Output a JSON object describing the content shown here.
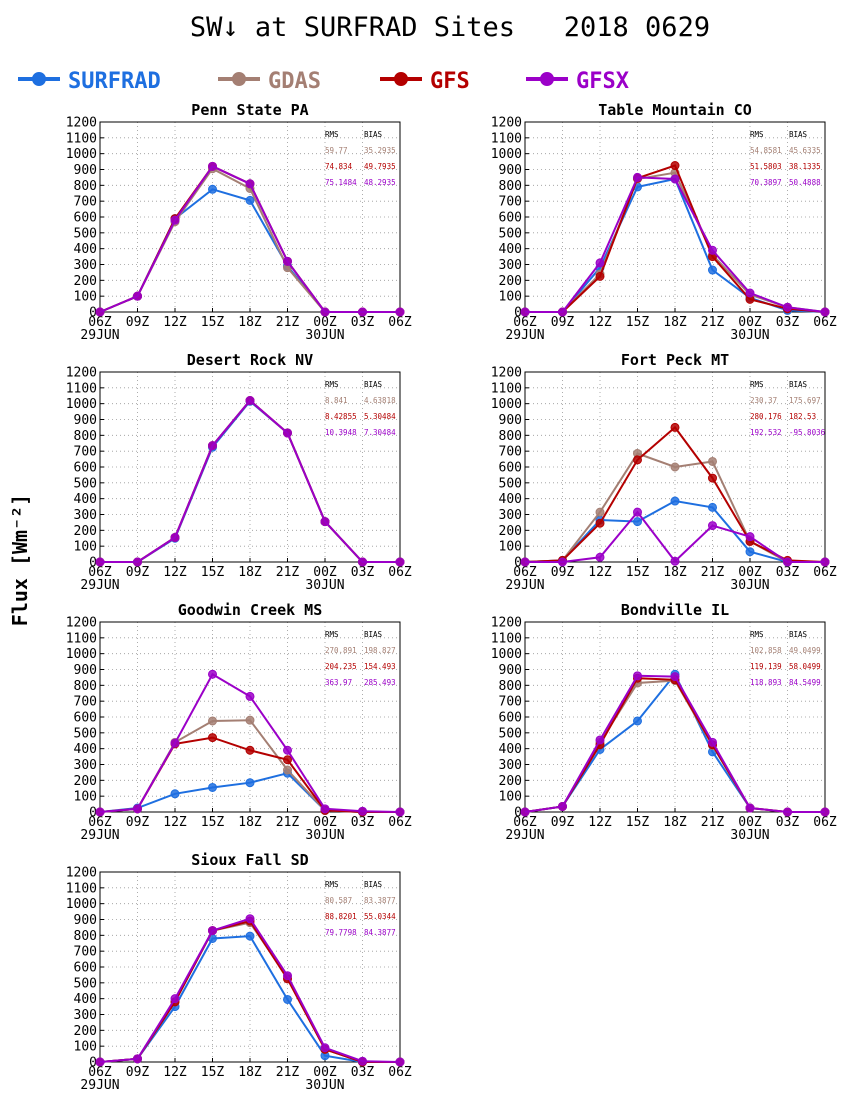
{
  "page": {
    "title": "SW↓ at SURFRAD Sites   2018 0629",
    "ylabel": "Flux [Wm⁻²]"
  },
  "legend": [
    {
      "name": "SURFRAD",
      "color": "#1e6fe0"
    },
    {
      "name": "GDAS",
      "color": "#a47f73"
    },
    {
      "name": "GFS",
      "color": "#b40000"
    },
    {
      "name": "GFSX",
      "color": "#9b00c8"
    }
  ],
  "stat_headers": {
    "rms": "RMS",
    "bias": "BIAS"
  },
  "chart_data": [
    {
      "type": "line",
      "title": "Penn State PA",
      "x": [
        "06Z",
        "09Z",
        "12Z",
        "15Z",
        "18Z",
        "21Z",
        "00Z",
        "03Z",
        "06Z"
      ],
      "date_labels": [
        "29JUN",
        "30JUN"
      ],
      "ylim": [
        0,
        1200
      ],
      "yticks": [
        0,
        100,
        200,
        300,
        400,
        500,
        600,
        700,
        800,
        900,
        1000,
        1100,
        1200
      ],
      "grid": true,
      "series": [
        {
          "name": "SURFRAD",
          "color": "#1e6fe0",
          "values": [
            0,
            100,
            590,
            775,
            705,
            290,
            0,
            null,
            null
          ]
        },
        {
          "name": "GDAS",
          "color": "#a47f73",
          "values": [
            0,
            100,
            570,
            905,
            780,
            280,
            0,
            0,
            0
          ]
        },
        {
          "name": "GFS",
          "color": "#b40000",
          "values": [
            0,
            100,
            590,
            920,
            810,
            320,
            0,
            0,
            0
          ]
        },
        {
          "name": "GFSX",
          "color": "#9b00c8",
          "values": [
            0,
            100,
            580,
            920,
            810,
            320,
            0,
            0,
            0
          ]
        }
      ],
      "stats": [
        {
          "rms": "59.77",
          "bias": "35.2935",
          "color": "#a47f73"
        },
        {
          "rms": "74.834",
          "bias": "49.7935",
          "color": "#b40000"
        },
        {
          "rms": "75.1484",
          "bias": "48.2935",
          "color": "#9b00c8"
        }
      ]
    },
    {
      "type": "line",
      "title": "Table Mountain CO",
      "x": [
        "06Z",
        "09Z",
        "12Z",
        "15Z",
        "18Z",
        "21Z",
        "00Z",
        "03Z",
        "06Z"
      ],
      "date_labels": [
        "29JUN",
        "30JUN"
      ],
      "ylim": [
        0,
        1200
      ],
      "yticks": [
        0,
        100,
        200,
        300,
        400,
        500,
        600,
        700,
        800,
        900,
        1000,
        1100,
        1200
      ],
      "grid": true,
      "series": [
        {
          "name": "SURFRAD",
          "color": "#1e6fe0",
          "values": [
            0,
            0,
            280,
            790,
            840,
            265,
            90,
            10,
            0
          ]
        },
        {
          "name": "GDAS",
          "color": "#a47f73",
          "values": [
            0,
            0,
            240,
            840,
            880,
            360,
            110,
            30,
            0
          ]
        },
        {
          "name": "GFS",
          "color": "#b40000",
          "values": [
            0,
            0,
            225,
            845,
            925,
            350,
            80,
            20,
            0
          ]
        },
        {
          "name": "GFSX",
          "color": "#9b00c8",
          "values": [
            0,
            0,
            310,
            850,
            840,
            390,
            120,
            30,
            0
          ]
        }
      ],
      "stats": [
        {
          "rms": "54.8581",
          "bias": "45.6335",
          "color": "#a47f73"
        },
        {
          "rms": "51.5803",
          "bias": "38.1335",
          "color": "#b40000"
        },
        {
          "rms": "70.3897",
          "bias": "50.4888",
          "color": "#9b00c8"
        }
      ]
    },
    {
      "type": "line",
      "title": "Desert Rock NV",
      "x": [
        "06Z",
        "09Z",
        "12Z",
        "15Z",
        "18Z",
        "21Z",
        "00Z",
        "03Z",
        "06Z"
      ],
      "date_labels": [
        "29JUN",
        "30JUN"
      ],
      "ylim": [
        0,
        1200
      ],
      "yticks": [
        0,
        100,
        200,
        300,
        400,
        500,
        600,
        700,
        800,
        900,
        1000,
        1100,
        1200
      ],
      "grid": true,
      "series": [
        {
          "name": "SURFRAD",
          "color": "#1e6fe0",
          "values": [
            0,
            0,
            150,
            725,
            1015,
            815,
            255,
            0,
            0
          ]
        },
        {
          "name": "GDAS",
          "color": "#a47f73",
          "values": [
            0,
            0,
            155,
            735,
            1020,
            815,
            255,
            0,
            0
          ]
        },
        {
          "name": "GFS",
          "color": "#b40000",
          "values": [
            0,
            0,
            155,
            735,
            1020,
            815,
            255,
            0,
            0
          ]
        },
        {
          "name": "GFSX",
          "color": "#9b00c8",
          "values": [
            0,
            0,
            155,
            735,
            1020,
            815,
            255,
            0,
            0
          ]
        }
      ],
      "stats": [
        {
          "rms": "8.841",
          "bias": "4.63818",
          "color": "#a47f73"
        },
        {
          "rms": "8.42855",
          "bias": "5.30484",
          "color": "#b40000"
        },
        {
          "rms": "10.3948",
          "bias": "7.30484",
          "color": "#9b00c8"
        }
      ]
    },
    {
      "type": "line",
      "title": "Fort Peck MT",
      "x": [
        "06Z",
        "09Z",
        "12Z",
        "15Z",
        "18Z",
        "21Z",
        "00Z",
        "03Z",
        "06Z"
      ],
      "date_labels": [
        "29JUN",
        "30JUN"
      ],
      "ylim": [
        0,
        1200
      ],
      "yticks": [
        0,
        100,
        200,
        300,
        400,
        500,
        600,
        700,
        800,
        900,
        1000,
        1100,
        1200
      ],
      "grid": true,
      "series": [
        {
          "name": "SURFRAD",
          "color": "#1e6fe0",
          "values": [
            0,
            10,
            265,
            255,
            385,
            345,
            65,
            0,
            0
          ]
        },
        {
          "name": "GDAS",
          "color": "#a47f73",
          "values": [
            0,
            10,
            315,
            685,
            600,
            635,
            130,
            0,
            0
          ]
        },
        {
          "name": "GFS",
          "color": "#b40000",
          "values": [
            0,
            10,
            245,
            645,
            850,
            530,
            130,
            10,
            0
          ]
        },
        {
          "name": "GFSX",
          "color": "#9b00c8",
          "values": [
            0,
            0,
            30,
            315,
            5,
            230,
            160,
            0,
            0
          ]
        }
      ],
      "stats": [
        {
          "rms": "230.37",
          "bias": "175.697",
          "color": "#a47f73"
        },
        {
          "rms": "280.176",
          "bias": "182.53",
          "color": "#b40000"
        },
        {
          "rms": "192.532",
          "bias": "-95.8036",
          "color": "#9b00c8"
        }
      ]
    },
    {
      "type": "line",
      "title": "Goodwin Creek MS",
      "x": [
        "06Z",
        "09Z",
        "12Z",
        "15Z",
        "18Z",
        "21Z",
        "00Z",
        "03Z",
        "06Z"
      ],
      "date_labels": [
        "29JUN",
        "30JUN"
      ],
      "ylim": [
        0,
        1200
      ],
      "yticks": [
        0,
        100,
        200,
        300,
        400,
        500,
        600,
        700,
        800,
        900,
        1000,
        1100,
        1200
      ],
      "grid": true,
      "series": [
        {
          "name": "SURFRAD",
          "color": "#1e6fe0",
          "values": [
            0,
            25,
            115,
            155,
            185,
            245,
            10,
            0,
            0
          ]
        },
        {
          "name": "GDAS",
          "color": "#a47f73",
          "values": [
            0,
            20,
            440,
            575,
            580,
            265,
            10,
            0,
            0
          ]
        },
        {
          "name": "GFS",
          "color": "#b40000",
          "values": [
            0,
            20,
            430,
            470,
            390,
            330,
            10,
            0,
            0
          ]
        },
        {
          "name": "GFSX",
          "color": "#9b00c8",
          "values": [
            0,
            20,
            435,
            870,
            730,
            390,
            20,
            5,
            0
          ]
        }
      ],
      "stats": [
        {
          "rms": "270.891",
          "bias": "198.827",
          "color": "#a47f73"
        },
        {
          "rms": "204.235",
          "bias": "154.493",
          "color": "#b40000"
        },
        {
          "rms": "363.97",
          "bias": "285.493",
          "color": "#9b00c8"
        }
      ]
    },
    {
      "type": "line",
      "title": "Bondville IL",
      "x": [
        "06Z",
        "09Z",
        "12Z",
        "15Z",
        "18Z",
        "21Z",
        "00Z",
        "03Z",
        "06Z"
      ],
      "date_labels": [
        "29JUN",
        "30JUN"
      ],
      "ylim": [
        0,
        1200
      ],
      "yticks": [
        0,
        100,
        200,
        300,
        400,
        500,
        600,
        700,
        800,
        900,
        1000,
        1100,
        1200
      ],
      "grid": true,
      "series": [
        {
          "name": "SURFRAD",
          "color": "#1e6fe0",
          "values": [
            0,
            35,
            395,
            575,
            870,
            380,
            25,
            null,
            null
          ]
        },
        {
          "name": "GDAS",
          "color": "#a47f73",
          "values": [
            0,
            35,
            440,
            815,
            830,
            420,
            25,
            0,
            0
          ]
        },
        {
          "name": "GFS",
          "color": "#b40000",
          "values": [
            0,
            35,
            425,
            845,
            835,
            425,
            25,
            0,
            0
          ]
        },
        {
          "name": "GFSX",
          "color": "#9b00c8",
          "values": [
            0,
            35,
            455,
            860,
            855,
            440,
            25,
            0,
            0
          ]
        }
      ],
      "stats": [
        {
          "rms": "102.858",
          "bias": "49.0499",
          "color": "#a47f73"
        },
        {
          "rms": "119.139",
          "bias": "58.0499",
          "color": "#b40000"
        },
        {
          "rms": "118.893",
          "bias": "84.5499",
          "color": "#9b00c8"
        }
      ]
    },
    {
      "type": "line",
      "title": "Sioux Fall SD",
      "x": [
        "06Z",
        "09Z",
        "12Z",
        "15Z",
        "18Z",
        "21Z",
        "00Z",
        "03Z",
        "06Z"
      ],
      "date_labels": [
        "29JUN",
        "30JUN"
      ],
      "ylim": [
        0,
        1200
      ],
      "yticks": [
        0,
        100,
        200,
        300,
        400,
        500,
        600,
        700,
        800,
        900,
        1000,
        1100,
        1200
      ],
      "grid": true,
      "series": [
        {
          "name": "SURFRAD",
          "color": "#1e6fe0",
          "values": [
            0,
            20,
            350,
            780,
            795,
            395,
            40,
            0,
            0
          ]
        },
        {
          "name": "GDAS",
          "color": "#a47f73",
          "values": [
            0,
            20,
            380,
            830,
            880,
            535,
            80,
            0,
            0
          ]
        },
        {
          "name": "GFS",
          "color": "#b40000",
          "values": [
            0,
            20,
            380,
            830,
            890,
            525,
            80,
            0,
            0
          ]
        },
        {
          "name": "GFSX",
          "color": "#9b00c8",
          "values": [
            0,
            20,
            400,
            830,
            905,
            545,
            90,
            5,
            0
          ]
        }
      ],
      "stats": [
        {
          "rms": "80.587",
          "bias": "83.3877",
          "color": "#a47f73"
        },
        {
          "rms": "88.8201",
          "bias": "55.0344",
          "color": "#b40000"
        },
        {
          "rms": "79.7798",
          "bias": "84.3877",
          "color": "#9b00c8"
        }
      ]
    }
  ]
}
